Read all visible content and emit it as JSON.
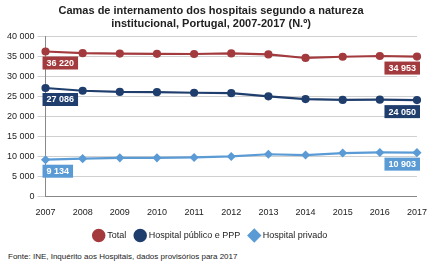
{
  "chart_data": {
    "type": "line",
    "title": [
      "Camas de internamento dos hospitais segundo a natureza",
      "institucional, Portugal, 2007-2017 (N.º)"
    ],
    "source": "Fonte: INE, Inquérito aos Hospitais, dados provisórios para 2017",
    "categories": [
      "2007",
      "2008",
      "2009",
      "2010",
      "2011",
      "2012",
      "2013",
      "2014",
      "2015",
      "2016",
      "2017"
    ],
    "series": [
      {
        "name": "Total",
        "color": "#a33a3d",
        "marker": "circle",
        "values": [
          36220,
          35800,
          35700,
          35650,
          35600,
          35750,
          35500,
          34600,
          34900,
          35100,
          34953
        ],
        "value_labels": [
          "36 220",
          null,
          null,
          null,
          null,
          null,
          null,
          null,
          null,
          null,
          "34 953"
        ]
      },
      {
        "name": "Hospital público e PPP",
        "color": "#1f3e6d",
        "marker": "square",
        "values": [
          27086,
          26400,
          26100,
          26050,
          25900,
          25800,
          25000,
          24300,
          24100,
          24150,
          24050
        ],
        "value_labels": [
          "27 086",
          null,
          null,
          null,
          null,
          null,
          null,
          null,
          null,
          null,
          "24 050"
        ]
      },
      {
        "name": "Hospital privado",
        "color": "#5b9bd5",
        "marker": "rectRot",
        "values": [
          9134,
          9400,
          9600,
          9600,
          9700,
          9950,
          10500,
          10300,
          10800,
          10950,
          10903
        ],
        "value_labels": [
          "9 134",
          null,
          null,
          null,
          null,
          null,
          null,
          null,
          null,
          null,
          "10 903"
        ]
      }
    ],
    "ylim": [
      0,
      40000
    ],
    "yticks": [
      0,
      {
        "value": 5000,
        "label": "5 000"
      },
      {
        "value": 10000,
        "label": "10 000"
      },
      {
        "value": 15000,
        "label": "15 000"
      },
      {
        "value": 20000,
        "label": "20 000"
      },
      {
        "value": 25000,
        "label": "25 000"
      },
      {
        "value": 30000,
        "label": "30 000"
      },
      {
        "value": 35000,
        "label": "35 000"
      },
      {
        "value": 40000,
        "label": "40 000"
      }
    ],
    "grid": true,
    "legend": "bottom",
    "data_labels": true
  }
}
